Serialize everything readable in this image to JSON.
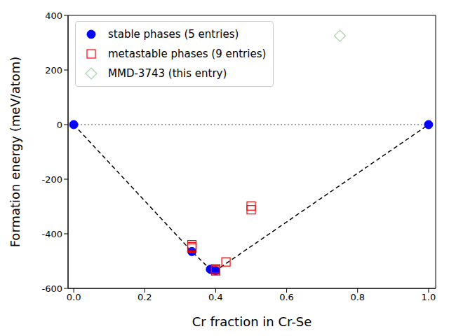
{
  "chart_data": {
    "type": "scatter",
    "xlabel": "Cr fraction in Cr-Se",
    "ylabel": "Formation energy (meV/atom)",
    "xlim": [
      -0.016,
      1.02
    ],
    "xticks": [
      {
        "value": 0,
        "label": "0.0"
      },
      {
        "value": 0.2,
        "label": "0.2"
      },
      {
        "value": 0.4,
        "label": "0.4"
      },
      {
        "value": 0.6,
        "label": "0.6"
      },
      {
        "value": 0.8,
        "label": "0.8"
      },
      {
        "value": 1,
        "label": "1.0"
      }
    ],
    "ylim": [
      -600,
      400
    ],
    "yticks": [
      -600,
      -400,
      -200,
      0,
      200,
      400
    ],
    "legend": "upper left",
    "series": [
      {
        "type": "line",
        "line_style": "dotted",
        "color": "#808080",
        "x": [
          0,
          1
        ],
        "values": [
          0,
          0
        ]
      },
      {
        "type": "line",
        "line_style": "dashed",
        "color": "#000000",
        "x": [
          0,
          0.333,
          0.385,
          0.4,
          1
        ],
        "values": [
          0,
          -465,
          -530,
          -535,
          0
        ]
      },
      {
        "name": "stable phases (5 entries)",
        "type": "scatter",
        "marker": "circle",
        "color": "#0000ff",
        "x": [
          0,
          0.333,
          0.385,
          0.4,
          1
        ],
        "values": [
          0,
          -465,
          -530,
          -535,
          0
        ]
      },
      {
        "name": "metastable phases (9 entries)",
        "type": "scatter",
        "marker": "open_square",
        "color": "#ff0000",
        "x": [
          0.333,
          0.333,
          0.333,
          0.4,
          0.4,
          0.4,
          0.429,
          0.5,
          0.5
        ],
        "values": [
          -440,
          -447,
          -452,
          -528,
          -532,
          -536,
          -503,
          -298,
          -312
        ]
      },
      {
        "name": "MMD-3743 (this entry)",
        "type": "scatter",
        "marker": "open_diamond",
        "color": "#008000",
        "x": [
          0.75
        ],
        "values": [
          325
        ]
      }
    ]
  }
}
